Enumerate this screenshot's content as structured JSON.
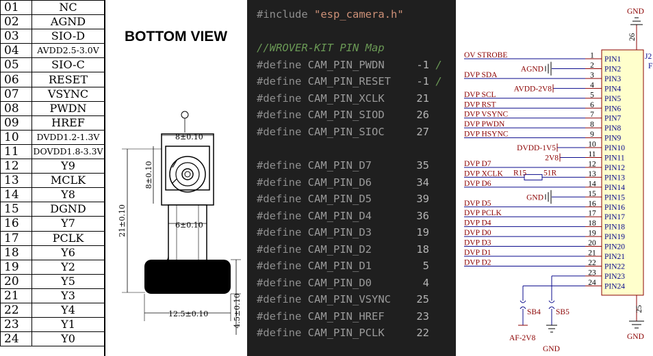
{
  "pins": [
    {
      "num": "01",
      "sig": "NC"
    },
    {
      "num": "02",
      "sig": "AGND"
    },
    {
      "num": "03",
      "sig": "SIO-D"
    },
    {
      "num": "04",
      "sig": "AVDD2.5-3.0V"
    },
    {
      "num": "05",
      "sig": "SIO-C"
    },
    {
      "num": "06",
      "sig": "RESET"
    },
    {
      "num": "07",
      "sig": "VSYNC"
    },
    {
      "num": "08",
      "sig": "PWDN"
    },
    {
      "num": "09",
      "sig": "HREF"
    },
    {
      "num": "10",
      "sig": "DVDD1.2-1.3V"
    },
    {
      "num": "11",
      "sig": "DOVDD1.8-3.3V"
    },
    {
      "num": "12",
      "sig": "Y9"
    },
    {
      "num": "13",
      "sig": "MCLK"
    },
    {
      "num": "14",
      "sig": "Y8"
    },
    {
      "num": "15",
      "sig": "DGND"
    },
    {
      "num": "16",
      "sig": "Y7"
    },
    {
      "num": "17",
      "sig": "PCLK"
    },
    {
      "num": "18",
      "sig": "Y6"
    },
    {
      "num": "19",
      "sig": "Y2"
    },
    {
      "num": "20",
      "sig": "Y5"
    },
    {
      "num": "21",
      "sig": "Y3"
    },
    {
      "num": "22",
      "sig": "Y4"
    },
    {
      "num": "23",
      "sig": "Y1"
    },
    {
      "num": "24",
      "sig": "Y0"
    }
  ],
  "drawing": {
    "title": "BOTTOM VIEW",
    "dims": {
      "lens_width": "8±0.10",
      "lens_height": "8±0.10",
      "flex_width": "6±0.10",
      "total_height": "21±0.10",
      "connector_width": "12.5±0.10",
      "connector_height": "4.5±0.10"
    }
  },
  "code": {
    "include_kw": "#include",
    "include_file": "\"esp_camera.h\"",
    "comment": "//WROVER-KIT PIN Map",
    "define_kw": "#define",
    "defines": [
      {
        "name": "CAM_PIN_PWDN",
        "value": "-1"
      },
      {
        "name": "CAM_PIN_RESET",
        "value": "-1"
      },
      {
        "name": "CAM_PIN_XCLK",
        "value": "21"
      },
      {
        "name": "CAM_PIN_SIOD",
        "value": "26"
      },
      {
        "name": "CAM_PIN_SIOC",
        "value": "27"
      },
      {
        "name": "CAM_PIN_D7",
        "value": "35"
      },
      {
        "name": "CAM_PIN_D6",
        "value": "34"
      },
      {
        "name": "CAM_PIN_D5",
        "value": "39"
      },
      {
        "name": "CAM_PIN_D4",
        "value": "36"
      },
      {
        "name": "CAM_PIN_D3",
        "value": "19"
      },
      {
        "name": "CAM_PIN_D2",
        "value": "18"
      },
      {
        "name": "CAM_PIN_D1",
        "value": "5"
      },
      {
        "name": "CAM_PIN_D0",
        "value": "4"
      },
      {
        "name": "CAM_PIN_VSYNC",
        "value": "25"
      },
      {
        "name": "CAM_PIN_HREF",
        "value": "23"
      },
      {
        "name": "CAM_PIN_PCLK",
        "value": "22"
      }
    ],
    "trail": "/"
  },
  "schematic": {
    "ref": "J2",
    "ref_suffix": "FP",
    "gnd_label": "GND",
    "top_pin_num": "26",
    "bottom_pin_num": "25",
    "nets": [
      {
        "pin": "1",
        "net": "OV_STROBE"
      },
      {
        "pin": "2",
        "net": "AGND"
      },
      {
        "pin": "3",
        "net": "DVP_SDA"
      },
      {
        "pin": "4",
        "net": "AVDD-2V8"
      },
      {
        "pin": "5",
        "net": "DVP_SCL"
      },
      {
        "pin": "6",
        "net": "DVP_RST"
      },
      {
        "pin": "7",
        "net": "DVP_VSYNC"
      },
      {
        "pin": "8",
        "net": "DVP_PWDN"
      },
      {
        "pin": "9",
        "net": "DVP_HSYNC"
      },
      {
        "pin": "10",
        "net": "DVDD-1V5"
      },
      {
        "pin": "11",
        "net": "2V8"
      },
      {
        "pin": "12",
        "net": "DVP_D7"
      },
      {
        "pin": "13",
        "net": "DVP_XCLK"
      },
      {
        "pin": "14",
        "net": "DVP_D6"
      },
      {
        "pin": "15",
        "net": "GND"
      },
      {
        "pin": "16",
        "net": "DVP_D5"
      },
      {
        "pin": "17",
        "net": "DVP_PCLK"
      },
      {
        "pin": "18",
        "net": "DVP_D4"
      },
      {
        "pin": "19",
        "net": "DVP_D0"
      },
      {
        "pin": "20",
        "net": "DVP_D3"
      },
      {
        "pin": "21",
        "net": "DVP_D1"
      },
      {
        "pin": "22",
        "net": "DVP_D2"
      },
      {
        "pin": "23",
        "net": ""
      },
      {
        "pin": "24",
        "net": ""
      }
    ],
    "pin_names": [
      "PIN1",
      "PIN2",
      "PIN3",
      "PIN4",
      "PIN5",
      "PIN6",
      "PIN7",
      "PIN8",
      "PIN9",
      "PIN10",
      "PIN11",
      "PIN12",
      "PIN13",
      "PIN14",
      "PIN15",
      "PIN16",
      "PIN17",
      "PIN18",
      "PIN19",
      "PIN20",
      "PIN21",
      "PIN22",
      "PIN23",
      "PIN24"
    ],
    "resistor": {
      "ref": "R15",
      "value": "51R"
    },
    "jumpers": [
      {
        "ref": "SB4"
      },
      {
        "ref": "SB5"
      }
    ],
    "af_label": "AF-2V8",
    "colors": {
      "net": "#0a0a8c",
      "label": "#8b0000",
      "wire": "#0a0a8c",
      "body": "#ffffcc"
    }
  }
}
